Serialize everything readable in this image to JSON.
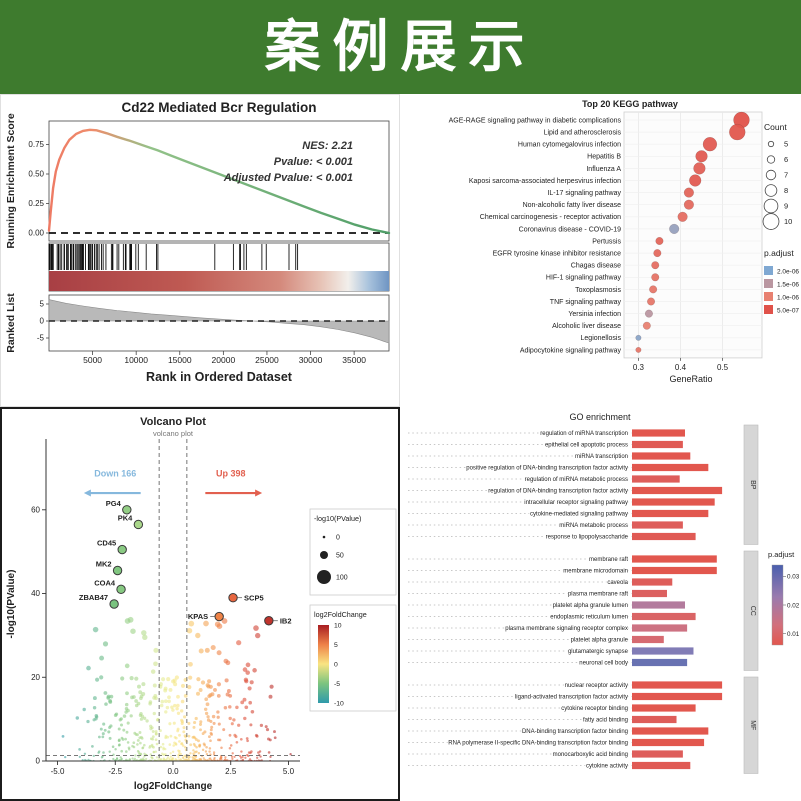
{
  "header": {
    "title": "案例展示",
    "bg_color": "#3e7b2e"
  },
  "chart_data": [
    {
      "id": "gsea",
      "type": "line",
      "title": "Cd22 Mediated Bcr Regulation",
      "ylabel_top": "Running Enrichment Score",
      "ylabel_bottom": "Ranked List",
      "xlabel": "Rank in Ordered Dataset",
      "stats": [
        "NES: 2.21",
        "Pvalue: < 0.001",
        "Adjusted Pvalue: < 0.001"
      ],
      "es_ticks": [
        {
          "v": 0,
          "label": "0.00"
        },
        {
          "v": 0.25,
          "label": "0.25"
        },
        {
          "v": 0.5,
          "label": "0.50"
        },
        {
          "v": 0.75,
          "label": "0.75"
        }
      ],
      "rank_ticks": [
        {
          "v": 5,
          "label": "5"
        },
        {
          "v": 0,
          "label": "0"
        },
        {
          "v": -5,
          "label": "-5"
        }
      ],
      "x_ticks": [
        {
          "v": 5000,
          "label": "5000"
        },
        {
          "v": 10000,
          "label": "10000"
        },
        {
          "v": 15000,
          "label": "15000"
        },
        {
          "v": 20000,
          "label": "20000"
        },
        {
          "v": 25000,
          "label": "25000"
        },
        {
          "v": 30000,
          "label": "30000"
        },
        {
          "v": 35000,
          "label": "35000"
        }
      ],
      "x_max": 39000,
      "es_curve": [
        [
          0,
          0.02
        ],
        [
          0.005,
          0.18
        ],
        [
          0.012,
          0.38
        ],
        [
          0.02,
          0.52
        ],
        [
          0.03,
          0.62
        ],
        [
          0.045,
          0.72
        ],
        [
          0.06,
          0.79
        ],
        [
          0.08,
          0.84
        ],
        [
          0.1,
          0.865
        ],
        [
          0.12,
          0.875
        ],
        [
          0.14,
          0.87
        ],
        [
          0.17,
          0.845
        ],
        [
          0.2,
          0.815
        ],
        [
          0.24,
          0.78
        ],
        [
          0.28,
          0.74
        ],
        [
          0.32,
          0.7
        ],
        [
          0.36,
          0.655
        ],
        [
          0.4,
          0.61
        ],
        [
          0.45,
          0.555
        ],
        [
          0.5,
          0.5
        ],
        [
          0.55,
          0.445
        ],
        [
          0.6,
          0.39
        ],
        [
          0.65,
          0.335
        ],
        [
          0.7,
          0.28
        ],
        [
          0.75,
          0.225
        ],
        [
          0.8,
          0.17
        ],
        [
          0.85,
          0.12
        ],
        [
          0.9,
          0.07
        ],
        [
          0.95,
          0.03
        ],
        [
          1,
          0
        ]
      ],
      "rank_curve": [
        [
          0,
          6.3
        ],
        [
          0.05,
          5.2
        ],
        [
          0.1,
          4.4
        ],
        [
          0.15,
          3.7
        ],
        [
          0.2,
          3.1
        ],
        [
          0.25,
          2.6
        ],
        [
          0.3,
          2.1
        ],
        [
          0.35,
          1.7
        ],
        [
          0.4,
          1.3
        ],
        [
          0.45,
          0.9
        ],
        [
          0.5,
          0.55
        ],
        [
          0.55,
          0.25
        ],
        [
          0.6,
          0
        ],
        [
          0.65,
          -0.3
        ],
        [
          0.7,
          -0.7
        ],
        [
          0.75,
          -1.1
        ],
        [
          0.8,
          -1.7
        ],
        [
          0.85,
          -2.5
        ],
        [
          0.9,
          -3.5
        ],
        [
          0.95,
          -4.8
        ],
        [
          1,
          -6.5
        ]
      ]
    },
    {
      "id": "kegg",
      "type": "scatter",
      "title": "Top 20 KEGG pathway",
      "xlabel": "GeneRatio",
      "x_ticks": [
        {
          "v": 0.3,
          "label": "0.3"
        },
        {
          "v": 0.4,
          "label": "0.4"
        },
        {
          "v": 0.5,
          "label": "0.5"
        }
      ],
      "legend_count": {
        "title": "Count",
        "values": [
          5,
          6,
          7,
          8,
          9,
          10
        ]
      },
      "legend_padjust": {
        "title": "p.adjust",
        "entries": [
          {
            "v": 2.0,
            "label": "2.0e-06"
          },
          {
            "v": 1.5,
            "label": "1.5e-06"
          },
          {
            "v": 1.0,
            "label": "1.0e-06"
          },
          {
            "v": 0.5,
            "label": "5.0e-07"
          }
        ]
      },
      "pathways": [
        {
          "name": "AGE-RAGE signaling pathway in diabetic complications",
          "ratio": 0.545,
          "count": 10,
          "padj": 0.5
        },
        {
          "name": "Lipid and atherosclerosis",
          "ratio": 0.535,
          "count": 10,
          "padj": 0.55
        },
        {
          "name": "Human cytomegalovirus infection",
          "ratio": 0.47,
          "count": 9,
          "padj": 0.6
        },
        {
          "name": "Hepatitis B",
          "ratio": 0.45,
          "count": 8,
          "padj": 0.6
        },
        {
          "name": "Influenza A",
          "ratio": 0.445,
          "count": 8,
          "padj": 0.65
        },
        {
          "name": "Kaposi sarcoma-associated herpesvirus infection",
          "ratio": 0.435,
          "count": 8,
          "padj": 0.6
        },
        {
          "name": "IL-17 signaling pathway",
          "ratio": 0.42,
          "count": 7,
          "padj": 0.7
        },
        {
          "name": "Non-alcoholic fatty liver disease",
          "ratio": 0.42,
          "count": 7,
          "padj": 0.75
        },
        {
          "name": "Chemical carcinogenesis - receptor activation",
          "ratio": 0.405,
          "count": 7,
          "padj": 0.8
        },
        {
          "name": "Coronavirus disease - COVID-19",
          "ratio": 0.385,
          "count": 7,
          "padj": 1.8
        },
        {
          "name": "Pertussis",
          "ratio": 0.35,
          "count": 6,
          "padj": 0.7
        },
        {
          "name": "EGFR tyrosine kinase inhibitor resistance",
          "ratio": 0.345,
          "count": 6,
          "padj": 0.75
        },
        {
          "name": "Chagas disease",
          "ratio": 0.34,
          "count": 6,
          "padj": 0.8
        },
        {
          "name": "HIF-1 signaling pathway",
          "ratio": 0.34,
          "count": 6,
          "padj": 0.85
        },
        {
          "name": "Toxoplasmosis",
          "ratio": 0.335,
          "count": 6,
          "padj": 0.9
        },
        {
          "name": "TNF signaling pathway",
          "ratio": 0.33,
          "count": 6,
          "padj": 0.9
        },
        {
          "name": "Yersinia infection",
          "ratio": 0.325,
          "count": 6,
          "padj": 1.5
        },
        {
          "name": "Alcoholic liver disease",
          "ratio": 0.32,
          "count": 6,
          "padj": 1.0
        },
        {
          "name": "Legionellosis",
          "ratio": 0.3,
          "count": 5,
          "padj": 1.9
        },
        {
          "name": "Adipocytokine signaling pathway",
          "ratio": 0.3,
          "count": 5,
          "padj": 0.9
        }
      ]
    },
    {
      "id": "volcano",
      "type": "scatter",
      "title": "Volcano Plot",
      "subtitle": "volcano plot",
      "xlabel": "log2FoldChange",
      "ylabel": "-log10(PValue)",
      "down_label": "Down 166",
      "up_label": "Up 398",
      "down_color": "#85b8dd",
      "up_color": "#e2604f",
      "x_ticks": [
        {
          "v": -5,
          "label": "-5.0"
        },
        {
          "v": -2.5,
          "label": "-2.5"
        },
        {
          "v": 0,
          "label": "0.0"
        },
        {
          "v": 2.5,
          "label": "2.5"
        },
        {
          "v": 5,
          "label": "5.0"
        }
      ],
      "y_ticks": [
        {
          "v": 0,
          "label": "0"
        },
        {
          "v": 20,
          "label": "20"
        },
        {
          "v": 40,
          "label": "40"
        },
        {
          "v": 60,
          "label": "60"
        }
      ],
      "thresholds": {
        "x": [
          -0.6,
          0.6
        ],
        "y": 1.3
      },
      "genes": [
        {
          "name": "PG4",
          "x": -2.0,
          "y": 60
        },
        {
          "name": "PK4",
          "x": -1.5,
          "y": 56.5
        },
        {
          "name": "CD45",
          "x": -2.2,
          "y": 50.5
        },
        {
          "name": "MK2",
          "x": -2.4,
          "y": 45.5
        },
        {
          "name": "COA4",
          "x": -2.25,
          "y": 41
        },
        {
          "name": "ZBAB47",
          "x": -2.55,
          "y": 37.5
        },
        {
          "name": "SCP5",
          "x": 2.6,
          "y": 39,
          "side": "right"
        },
        {
          "name": "KPAS",
          "x": 2.0,
          "y": 34.5,
          "side": "left"
        },
        {
          "name": "IB2",
          "x": 4.15,
          "y": 33.5,
          "side": "right"
        }
      ],
      "legend_size": {
        "title": "-log10(PValue)",
        "entries": [
          {
            "label": "0",
            "r": 1.3
          },
          {
            "label": "50",
            "r": 4
          },
          {
            "label": "100",
            "r": 7
          }
        ]
      },
      "legend_color": {
        "title": "log2FoldChange",
        "ticks": [
          {
            "v": 10,
            "label": "10"
          },
          {
            "v": 5,
            "label": "5"
          },
          {
            "v": 0,
            "label": "0"
          },
          {
            "v": -5,
            "label": "-5"
          },
          {
            "v": -10,
            "label": "-10"
          }
        ]
      }
    },
    {
      "id": "go",
      "type": "bar",
      "title": "GO enrichment",
      "legend_padjust": {
        "title": "p.adjust",
        "ticks": [
          {
            "v": 0.03,
            "label": "0.03"
          },
          {
            "v": 0.02,
            "label": "0.02"
          },
          {
            "v": 0.01,
            "label": "0.01"
          }
        ]
      },
      "facets": [
        {
          "label": "BP",
          "terms": [
            {
              "name": "regulation of miRNA transcription",
              "value": 0.5,
              "padj": 0.004
            },
            {
              "name": "epithelial cell apoptotic process",
              "value": 0.48,
              "padj": 0.005
            },
            {
              "name": "miRNA transcription",
              "value": 0.55,
              "padj": 0.004
            },
            {
              "name": "positive regulation of DNA-binding transcription factor activity",
              "value": 0.72,
              "padj": 0.003
            },
            {
              "name": "regulation of miRNA metabolic process",
              "value": 0.45,
              "padj": 0.006
            },
            {
              "name": "regulation of DNA-binding transcription factor activity",
              "value": 0.85,
              "padj": 0.002
            },
            {
              "name": "intracellular receptor signaling pathway",
              "value": 0.78,
              "padj": 0.003
            },
            {
              "name": "cytokine-mediated signaling pathway",
              "value": 0.72,
              "padj": 0.004
            },
            {
              "name": "miRNA metabolic process",
              "value": 0.48,
              "padj": 0.006
            },
            {
              "name": "response to lipopolysaccharide",
              "value": 0.6,
              "padj": 0.005
            }
          ]
        },
        {
          "label": "CC",
          "terms": [
            {
              "name": "membrane raft",
              "value": 0.8,
              "padj": 0.002
            },
            {
              "name": "membrane microdomain",
              "value": 0.8,
              "padj": 0.002
            },
            {
              "name": "caveola",
              "value": 0.38,
              "padj": 0.006
            },
            {
              "name": "plasma membrane raft",
              "value": 0.33,
              "padj": 0.007
            },
            {
              "name": "platelet alpha granule lumen",
              "value": 0.5,
              "padj": 0.018
            },
            {
              "name": "endoplasmic reticulum lumen",
              "value": 0.6,
              "padj": 0.008
            },
            {
              "name": "plasma membrane signaling receptor complex",
              "value": 0.52,
              "padj": 0.013
            },
            {
              "name": "platelet alpha granule",
              "value": 0.3,
              "padj": 0.01
            },
            {
              "name": "glutamatergic synapse",
              "value": 0.58,
              "padj": 0.026
            },
            {
              "name": "neuronal cell body",
              "value": 0.52,
              "padj": 0.03
            }
          ]
        },
        {
          "label": "MF",
          "terms": [
            {
              "name": "nuclear receptor activity",
              "value": 0.85,
              "padj": 0.002
            },
            {
              "name": "ligand-activated transcription factor activity",
              "value": 0.85,
              "padj": 0.002
            },
            {
              "name": "cytokine receptor binding",
              "value": 0.6,
              "padj": 0.004
            },
            {
              "name": "fatty acid binding",
              "value": 0.42,
              "padj": 0.006
            },
            {
              "name": "DNA-binding transcription factor binding",
              "value": 0.72,
              "padj": 0.003
            },
            {
              "name": "RNA polymerase II-specific DNA-binding transcription factor binding",
              "value": 0.68,
              "padj": 0.003
            },
            {
              "name": "monocarboxylic acid binding",
              "value": 0.48,
              "padj": 0.006
            },
            {
              "name": "cytokine activity",
              "value": 0.55,
              "padj": 0.005
            }
          ]
        }
      ]
    }
  ]
}
